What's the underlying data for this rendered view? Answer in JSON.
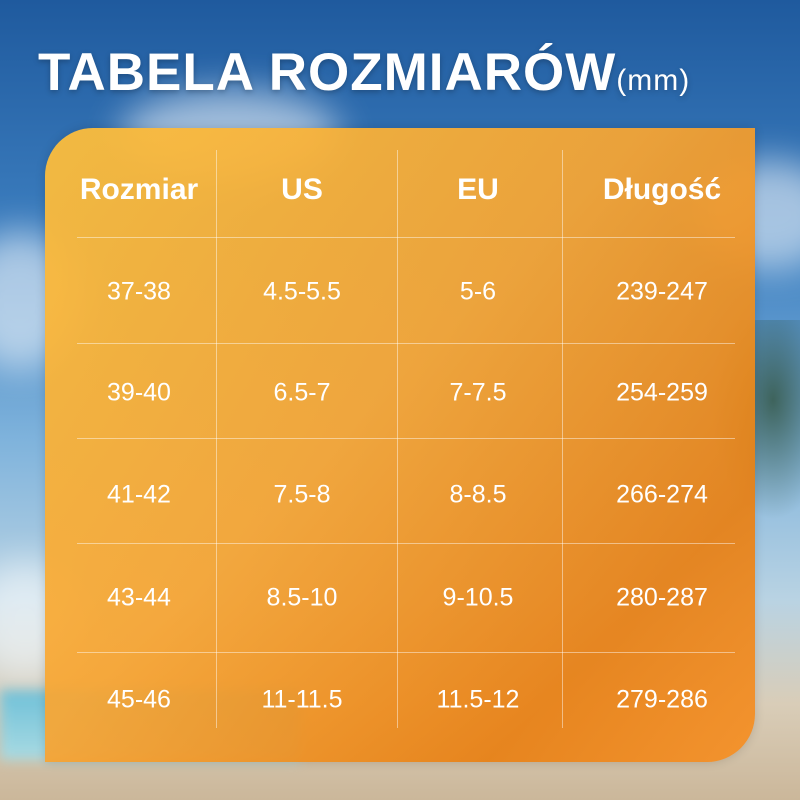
{
  "title": {
    "main": "TABELA ROZMIARÓW",
    "unit": "(mm)"
  },
  "table": {
    "headers": [
      "Rozmiar",
      "US",
      "EU",
      "Długość"
    ],
    "rows": [
      [
        "37-38",
        "4.5-5.5",
        "5-6",
        "239-247"
      ],
      [
        "39-40",
        "6.5-7",
        "7-7.5",
        "254-259"
      ],
      [
        "41-42",
        "7.5-8",
        "8-8.5",
        "266-274"
      ],
      [
        "43-44",
        "8.5-10",
        "9-10.5",
        "280-287"
      ],
      [
        "45-46",
        "11-11.5",
        "11.5-12",
        "279-286"
      ]
    ]
  },
  "colors": {
    "panel": "#F5A030",
    "text": "#FFFFFF",
    "sky": "#2F6FB0"
  }
}
